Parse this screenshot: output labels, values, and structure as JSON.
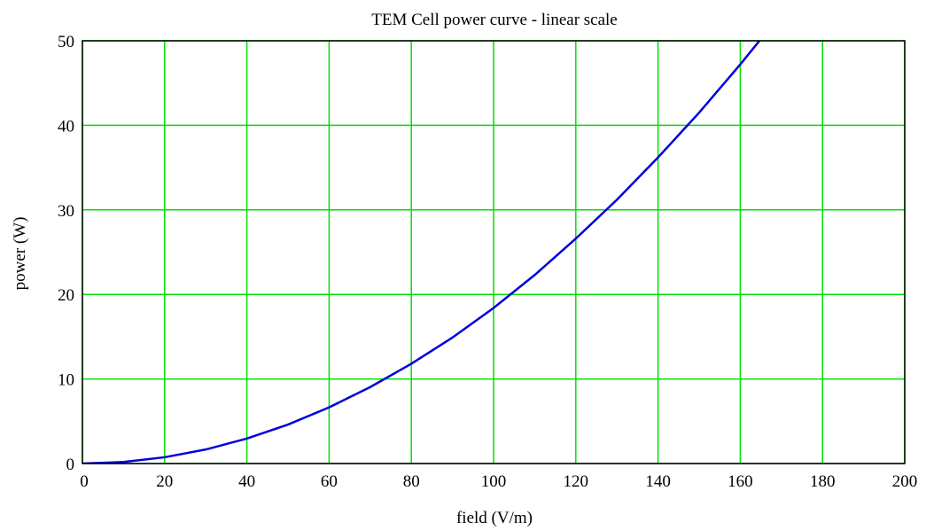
{
  "chart_data": {
    "type": "line",
    "title": "TEM Cell power curve - linear scale",
    "xlabel": "field (V/m)",
    "ylabel": "power (W)",
    "xlim": [
      0,
      200
    ],
    "ylim": [
      0,
      50
    ],
    "x_ticks": [
      0,
      20,
      40,
      60,
      80,
      100,
      120,
      140,
      160,
      180,
      200
    ],
    "y_ticks": [
      0,
      10,
      20,
      30,
      40,
      50
    ],
    "grid": true,
    "legend": "none",
    "colors": {
      "grid": "#00e000",
      "curve": "#0000dd",
      "frame": "#000000"
    },
    "series": [
      {
        "x": [
          0,
          10,
          20,
          30,
          40,
          50,
          60,
          70,
          80,
          90,
          100,
          110,
          120,
          130,
          140,
          150,
          160,
          165
        ],
        "y": [
          0,
          0.18,
          0.74,
          1.66,
          2.95,
          4.61,
          6.64,
          9.04,
          11.8,
          14.9,
          18.4,
          22.3,
          26.6,
          31.2,
          36.2,
          41.5,
          47.2,
          50.2
        ]
      }
    ]
  }
}
